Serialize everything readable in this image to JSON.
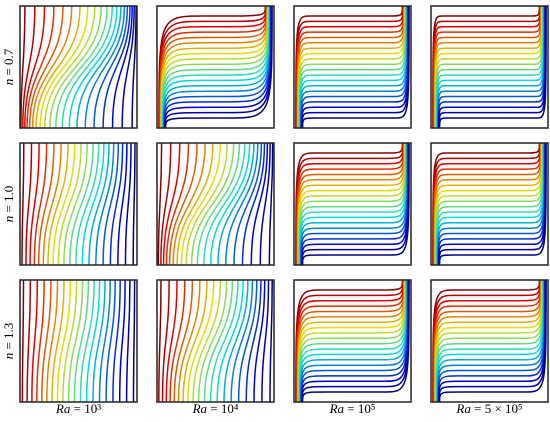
{
  "rows": [
    {
      "var": "n",
      "expr": "= 0.7"
    },
    {
      "var": "n",
      "expr": "= 1.0"
    },
    {
      "var": "n",
      "expr": "= 1.3"
    }
  ],
  "columns": [
    {
      "var": "Ra",
      "expr": "= 10³"
    },
    {
      "var": "Ra",
      "expr": "= 10⁴"
    },
    {
      "var": "Ra",
      "expr": "= 10⁵"
    },
    {
      "var": "Ra",
      "expr": "= 5 × 10⁵"
    }
  ]
}
